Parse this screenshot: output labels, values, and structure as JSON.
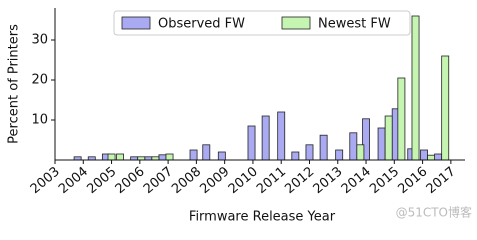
{
  "chart_data": {
    "type": "bar",
    "xlabel": "Firmware Release Year",
    "ylabel": "Percent of Printers",
    "series": [
      {
        "name": "Observed FW",
        "color": "#aaaaf2",
        "x": [
          2003.8,
          2004.3,
          2004.8,
          2005.8,
          2006.3,
          2006.8,
          2007.9,
          2008.35,
          2008.9,
          2009.95,
          2010.45,
          2011.0,
          2011.5,
          2012.0,
          2012.5,
          2013.05,
          2013.55,
          2014.0,
          2014.55,
          2015.05,
          2015.6,
          2016.05,
          2016.55
        ],
        "values": [
          0.8,
          0.8,
          1.5,
          0.8,
          0.8,
          1.3,
          2.5,
          3.8,
          2,
          8.5,
          11,
          12,
          2,
          3.8,
          6.2,
          2.5,
          6.8,
          10.3,
          8,
          12.8,
          2.8,
          2.5,
          1.5
        ]
      },
      {
        "name": "Newest FW",
        "color": "#c6f5b2",
        "x": [
          2005.0,
          2005.3,
          2006.05,
          2006.55,
          2007.05,
          2013.8,
          2014.8,
          2015.25,
          2015.75,
          2016.3,
          2016.8
        ],
        "values": [
          1.5,
          1.5,
          0.8,
          0.8,
          1.5,
          3.8,
          11,
          20.5,
          36,
          1.2,
          26
        ]
      }
    ],
    "xlim": [
      2003,
      2017.5
    ],
    "xticks": [
      2003,
      2004,
      2005,
      2006,
      2007,
      2008,
      2009,
      2010,
      2011,
      2012,
      2013,
      2014,
      2015,
      2016,
      2017
    ],
    "ylim": [
      0,
      38
    ],
    "yticks": [
      10,
      20,
      30
    ],
    "legend": "upper center",
    "watermark": "@51CTO博客"
  }
}
